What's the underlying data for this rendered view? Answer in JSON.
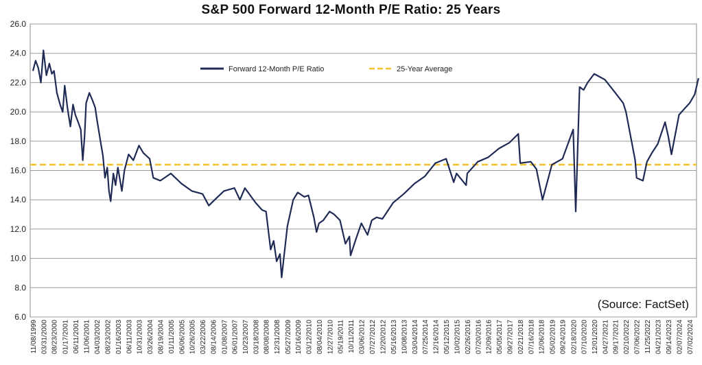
{
  "chart_data": {
    "type": "line",
    "title": "S&P 500 Forward 12-Month P/E Ratio: 25 Years",
    "source": "(Source: FactSet)",
    "ylim": [
      6.0,
      26.0
    ],
    "y_ticks": [
      "6.0",
      "8.0",
      "10.0",
      "12.0",
      "14.0",
      "16.0",
      "18.0",
      "20.0",
      "22.0",
      "24.0",
      "26.0"
    ],
    "x_ticks": [
      "11/08/1999",
      "03/31/2000",
      "08/23/2000",
      "01/17/2001",
      "06/11/2001",
      "11/06/2001",
      "04/03/2002",
      "08/23/2002",
      "01/16/2003",
      "06/11/2003",
      "10/31/2003",
      "03/26/2004",
      "08/19/2004",
      "01/11/2005",
      "06/06/2005",
      "10/26/2005",
      "03/22/2006",
      "08/14/2006",
      "01/08/2007",
      "06/01/2007",
      "10/23/2007",
      "03/18/2008",
      "08/08/2008",
      "12/31/2008",
      "05/27/2009",
      "10/16/2009",
      "03/12/2010",
      "08/04/2010",
      "12/27/2010",
      "05/19/2011",
      "10/11/2011",
      "03/06/2012",
      "07/27/2012",
      "12/20/2012",
      "05/16/2013",
      "10/08/2013",
      "03/04/2014",
      "07/25/2014",
      "12/16/2014",
      "05/12/2015",
      "10/02/2015",
      "02/26/2016",
      "07/20/2016",
      "12/09/2016",
      "05/05/2017",
      "09/27/2017",
      "02/21/2018",
      "07/16/2018",
      "12/06/2018",
      "05/02/2019",
      "09/24/2019",
      "02/18/2020",
      "07/10/2020",
      "12/01/2020",
      "04/27/2021",
      "09/17/2021",
      "02/10/2022",
      "07/06/2022",
      "11/25/2022",
      "04/21/2023",
      "09/14/2023",
      "02/07/2024",
      "07/02/2024"
    ],
    "grid": true,
    "legend_placement": "top-center",
    "series": [
      {
        "name": "Forward 12-Month P/E Ratio",
        "color": "#1f2a55",
        "style": "solid",
        "x": [
          "11/08/1999",
          "12/15/1999",
          "01/20/2000",
          "02/25/2000",
          "03/31/2000",
          "05/10/2000",
          "06/20/2000",
          "07/25/2000",
          "08/23/2000",
          "10/01/2000",
          "11/15/2000",
          "12/20/2000",
          "01/17/2001",
          "02/25/2001",
          "04/05/2001",
          "05/10/2001",
          "06/11/2001",
          "07/20/2001",
          "08/25/2001",
          "09/21/2001",
          "10/15/2001",
          "11/06/2001",
          "12/20/2001",
          "02/01/2002",
          "03/10/2002",
          "04/03/2002",
          "05/15/2002",
          "06/25/2002",
          "07/23/2002",
          "08/23/2002",
          "09/15/2002",
          "10/09/2002",
          "11/15/2002",
          "12/15/2002",
          "01/16/2003",
          "03/11/2003",
          "04/15/2003",
          "06/11/2003",
          "08/15/2003",
          "10/31/2003",
          "12/31/2003",
          "03/26/2004",
          "05/15/2004",
          "08/19/2004",
          "01/11/2005",
          "06/06/2005",
          "10/26/2005",
          "03/22/2006",
          "06/15/2006",
          "08/14/2006",
          "01/08/2007",
          "06/01/2007",
          "08/15/2007",
          "10/23/2007",
          "03/18/2008",
          "06/15/2008",
          "08/08/2008",
          "10/10/2008",
          "11/20/2008",
          "12/31/2008",
          "02/15/2009",
          "03/09/2009",
          "05/27/2009",
          "08/15/2009",
          "10/16/2009",
          "01/15/2010",
          "03/12/2010",
          "05/25/2010",
          "07/01/2010",
          "08/04/2010",
          "10/01/2010",
          "12/27/2010",
          "03/01/2011",
          "05/19/2011",
          "08/01/2011",
          "09/25/2011",
          "10/11/2011",
          "12/15/2011",
          "03/06/2012",
          "05/30/2012",
          "07/27/2012",
          "10/01/2012",
          "12/20/2012",
          "05/16/2013",
          "10/08/2013",
          "03/04/2014",
          "07/25/2014",
          "12/16/2014",
          "05/12/2015",
          "08/25/2015",
          "10/02/2015",
          "02/11/2016",
          "02/26/2016",
          "07/20/2016",
          "12/09/2016",
          "05/05/2017",
          "09/27/2017",
          "01/26/2018",
          "02/21/2018",
          "07/16/2018",
          "10/01/2018",
          "12/24/2018",
          "05/02/2019",
          "09/24/2019",
          "02/18/2020",
          "03/23/2020",
          "05/15/2020",
          "07/10/2020",
          "09/02/2020",
          "12/01/2020",
          "04/27/2021",
          "09/17/2021",
          "01/03/2022",
          "02/10/2022",
          "06/16/2022",
          "07/06/2022",
          "09/30/2022",
          "11/25/2022",
          "02/01/2023",
          "04/21/2023",
          "07/31/2023",
          "09/14/2023",
          "10/27/2023",
          "02/07/2024",
          "04/19/2024",
          "07/02/2024",
          "09/10/2024",
          "10/31/2024"
        ],
        "values": [
          22.8,
          23.5,
          23.0,
          22.0,
          24.2,
          22.5,
          23.3,
          22.6,
          22.8,
          21.3,
          20.5,
          20.0,
          21.8,
          20.2,
          19.0,
          20.5,
          19.8,
          19.3,
          18.8,
          16.7,
          18.3,
          20.6,
          21.3,
          20.8,
          20.3,
          19.5,
          18.2,
          17.0,
          15.5,
          16.2,
          14.6,
          13.9,
          15.8,
          15.0,
          16.2,
          14.6,
          16.0,
          17.1,
          16.7,
          17.7,
          17.2,
          16.8,
          15.5,
          15.3,
          15.8,
          15.1,
          14.6,
          14.4,
          13.6,
          13.9,
          14.6,
          14.8,
          14.0,
          14.8,
          13.8,
          13.3,
          13.2,
          10.6,
          11.2,
          9.8,
          10.3,
          8.7,
          12.2,
          14.0,
          14.5,
          14.2,
          14.3,
          12.8,
          11.8,
          12.4,
          12.6,
          13.2,
          13.0,
          12.6,
          11.0,
          11.5,
          10.2,
          11.2,
          12.4,
          11.6,
          12.6,
          12.8,
          12.7,
          13.8,
          14.4,
          15.1,
          15.6,
          16.5,
          16.8,
          15.2,
          15.8,
          15.0,
          15.8,
          16.6,
          16.9,
          17.5,
          17.9,
          18.5,
          16.5,
          16.6,
          16.1,
          14.0,
          16.4,
          16.8,
          18.8,
          13.2,
          21.7,
          21.5,
          22.0,
          22.6,
          22.2,
          21.3,
          20.6,
          20.0,
          16.7,
          15.5,
          15.3,
          16.6,
          17.2,
          17.8,
          19.3,
          18.3,
          17.1,
          19.8,
          20.2,
          20.6,
          21.2,
          22.3
        ]
      },
      {
        "name": "25-Year Average",
        "color": "#f2c230",
        "style": "dashed",
        "constant": 16.4
      }
    ]
  }
}
